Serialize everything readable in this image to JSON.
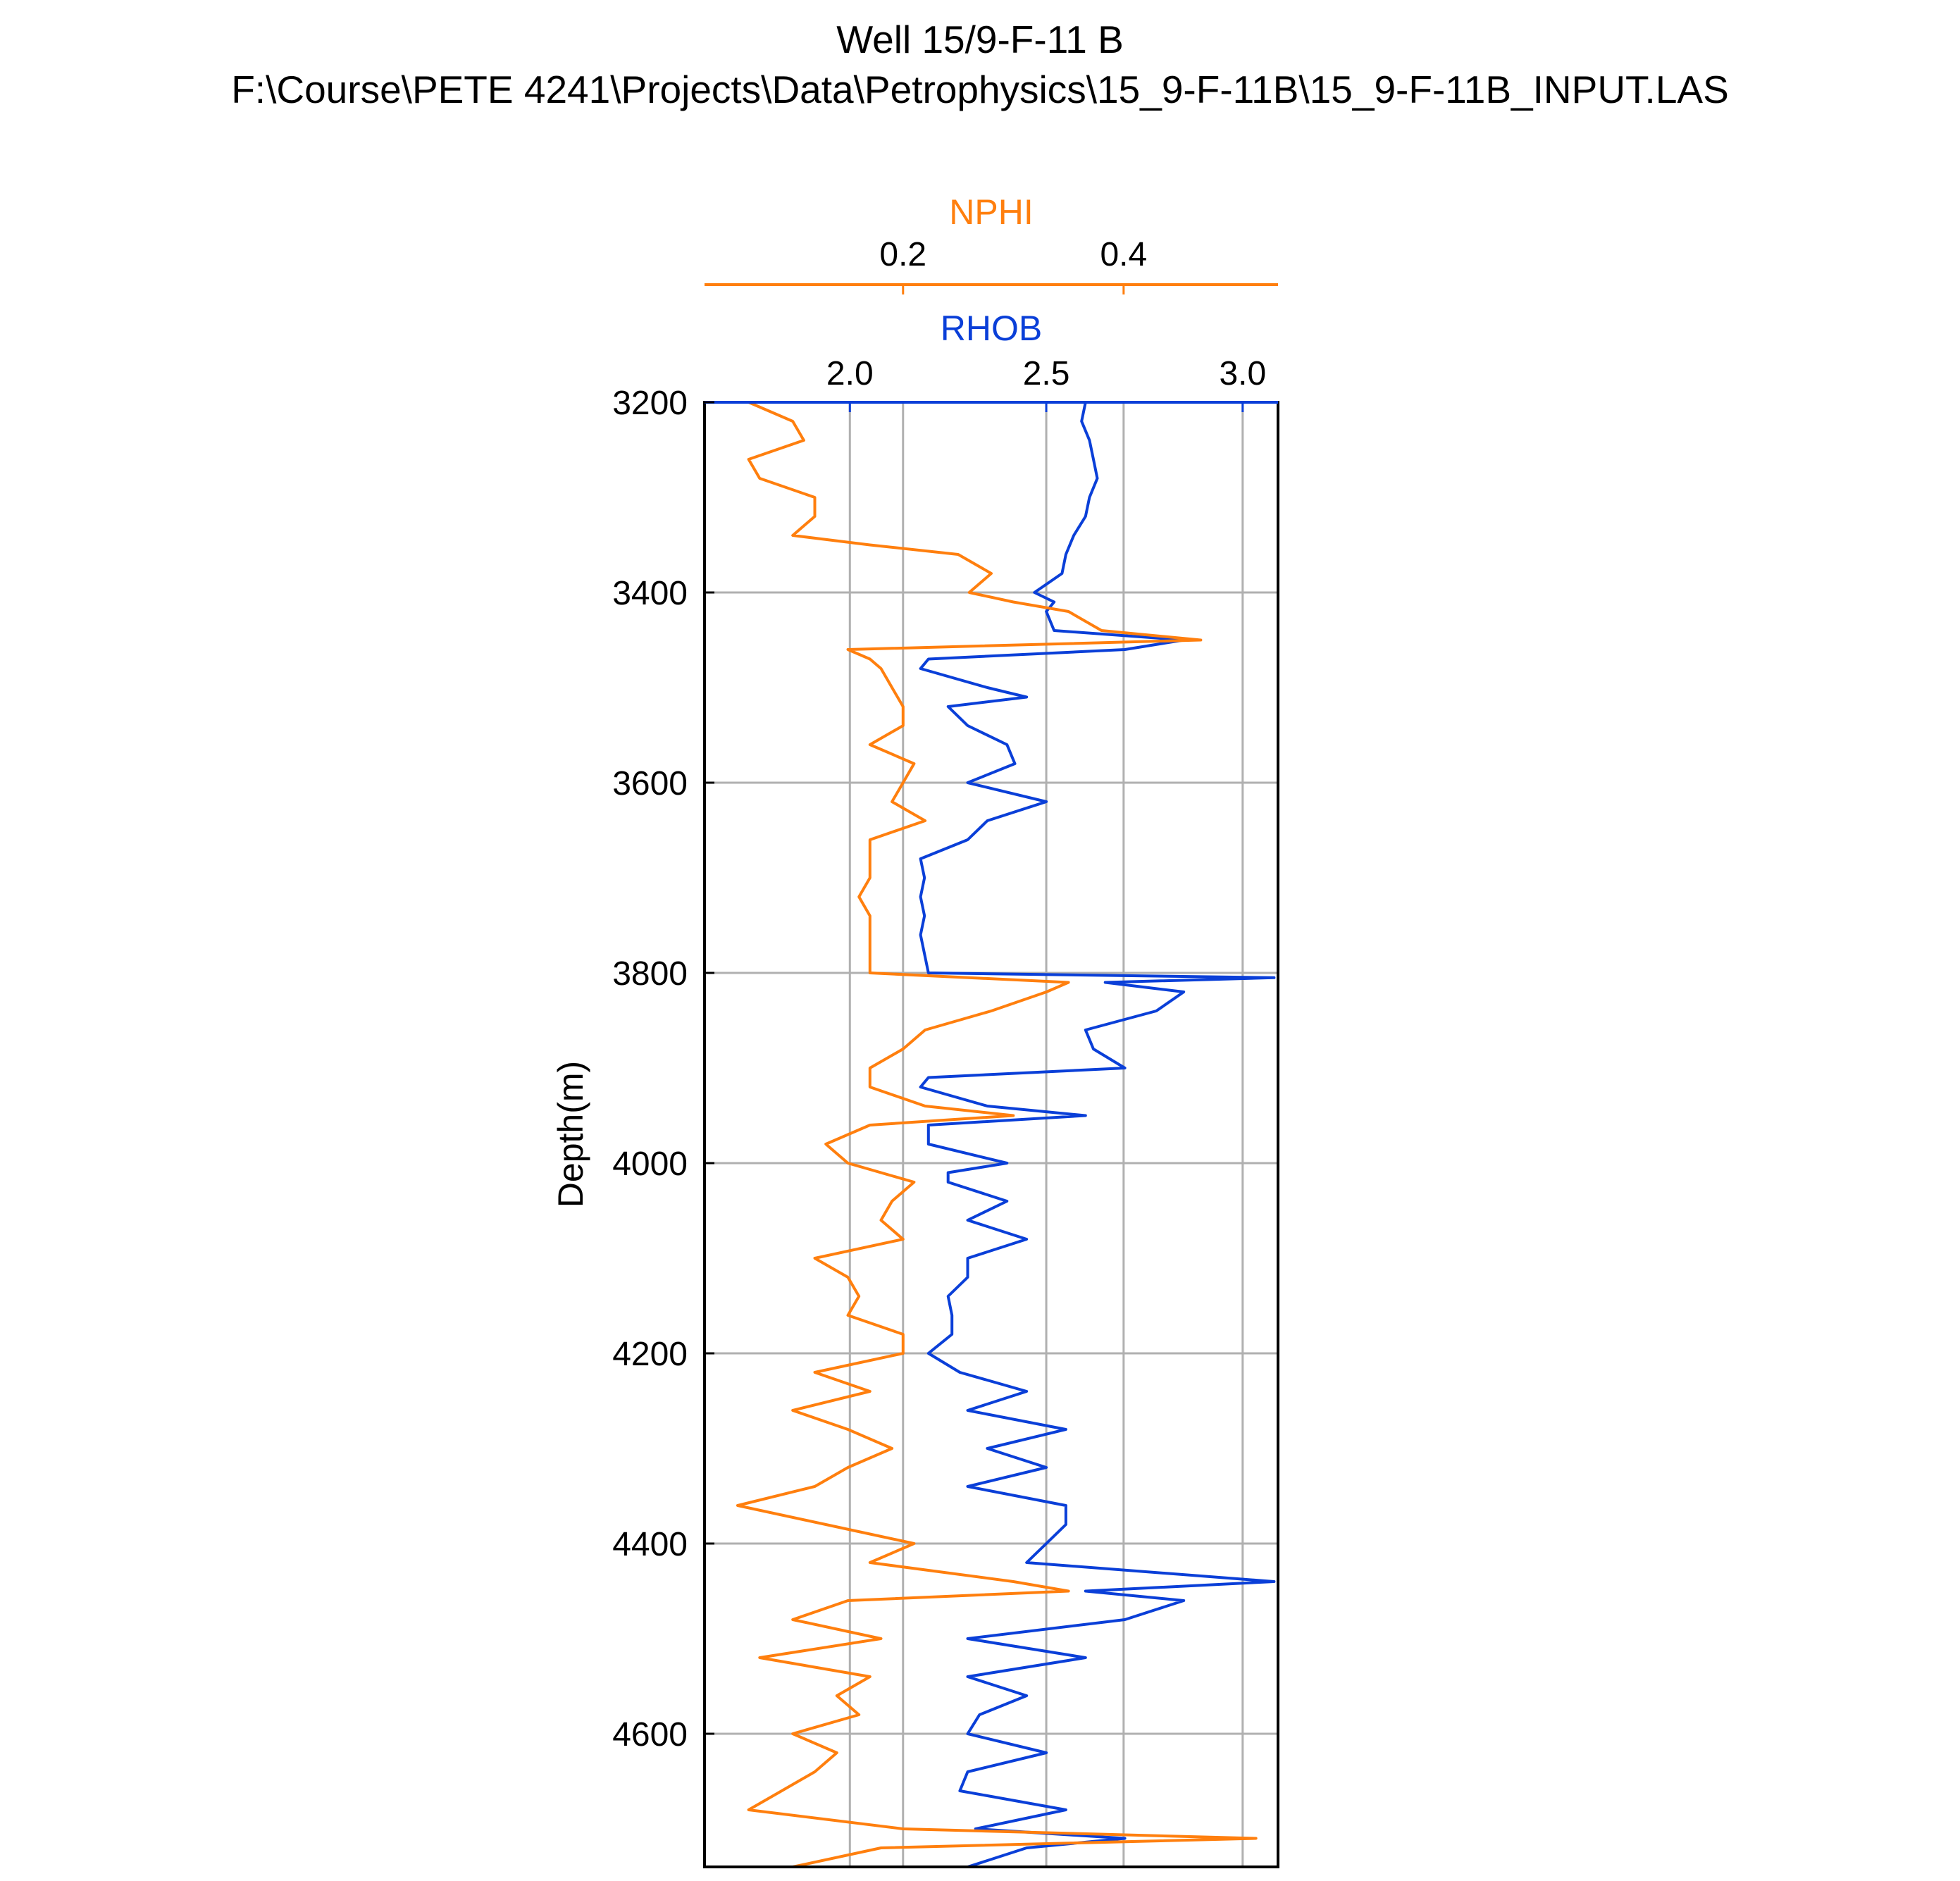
{
  "chart_data": {
    "type": "line",
    "title": "Well 15/9-F-11 B",
    "subtitle": "F:\\Course\\PETE 4241\\Projects\\Data\\Petrophysics\\15_9-F-11B\\15_9-F-11B_INPUT.LAS",
    "ylabel": "Depth(m)",
    "ylim": [
      3200,
      4740
    ],
    "y_ticks": [
      3200,
      3400,
      3600,
      3800,
      4000,
      4200,
      4400,
      4600
    ],
    "grid": true,
    "axes": [
      {
        "name": "NPHI",
        "color": "#ff7f0e",
        "xlim": [
          0.02,
          0.54
        ],
        "ticks": [
          0.2,
          0.4
        ],
        "tick_labels": [
          "0.2",
          "0.4"
        ]
      },
      {
        "name": "RHOB",
        "color": "#0a3fd8",
        "xlim": [
          1.63,
          3.09
        ],
        "ticks": [
          2.0,
          2.5,
          3.0
        ],
        "tick_labels": [
          "2.0",
          "2.5",
          "3.0"
        ]
      }
    ],
    "series": [
      {
        "name": "RHOB",
        "color": "#0a3fd8",
        "depth": [
          3200,
          3220,
          3240,
          3260,
          3280,
          3300,
          3320,
          3340,
          3360,
          3380,
          3400,
          3410,
          3420,
          3440,
          3450,
          3460,
          3470,
          3480,
          3500,
          3510,
          3520,
          3540,
          3560,
          3580,
          3600,
          3620,
          3640,
          3660,
          3680,
          3700,
          3720,
          3740,
          3760,
          3780,
          3800,
          3805,
          3810,
          3820,
          3840,
          3860,
          3880,
          3900,
          3910,
          3920,
          3940,
          3950,
          3960,
          3980,
          4000,
          4010,
          4020,
          4040,
          4060,
          4080,
          4100,
          4120,
          4140,
          4160,
          4180,
          4200,
          4220,
          4240,
          4260,
          4280,
          4300,
          4320,
          4340,
          4360,
          4380,
          4400,
          4420,
          4440,
          4450,
          4460,
          4480,
          4500,
          4520,
          4540,
          4560,
          4580,
          4600,
          4620,
          4640,
          4660,
          4680,
          4700,
          4710,
          4720,
          4740
        ],
        "values": [
          2.6,
          2.59,
          2.61,
          2.62,
          2.63,
          2.61,
          2.6,
          2.57,
          2.55,
          2.54,
          2.47,
          2.52,
          2.5,
          2.52,
          2.85,
          2.7,
          2.2,
          2.18,
          2.35,
          2.45,
          2.25,
          2.3,
          2.4,
          2.42,
          2.3,
          2.5,
          2.35,
          2.3,
          2.18,
          2.19,
          2.18,
          2.19,
          2.18,
          2.19,
          2.2,
          3.08,
          2.65,
          2.85,
          2.78,
          2.6,
          2.62,
          2.7,
          2.2,
          2.18,
          2.35,
          2.6,
          2.2,
          2.2,
          2.4,
          2.25,
          2.25,
          2.4,
          2.3,
          2.45,
          2.3,
          2.3,
          2.25,
          2.26,
          2.26,
          2.2,
          2.28,
          2.45,
          2.3,
          2.55,
          2.35,
          2.5,
          2.3,
          2.55,
          2.55,
          2.5,
          2.45,
          3.08,
          2.6,
          2.85,
          2.7,
          2.3,
          2.6,
          2.3,
          2.45,
          2.33,
          2.3,
          2.5,
          2.3,
          2.28,
          2.55,
          2.32,
          2.7,
          2.45,
          2.3
        ]
      },
      {
        "name": "NPHI",
        "color": "#ff7f0e",
        "depth": [
          3200,
          3220,
          3240,
          3260,
          3280,
          3300,
          3320,
          3340,
          3350,
          3360,
          3380,
          3400,
          3410,
          3420,
          3440,
          3450,
          3460,
          3470,
          3480,
          3500,
          3520,
          3540,
          3560,
          3580,
          3600,
          3620,
          3640,
          3660,
          3680,
          3700,
          3720,
          3740,
          3760,
          3780,
          3800,
          3810,
          3820,
          3840,
          3860,
          3880,
          3900,
          3920,
          3940,
          3950,
          3960,
          3980,
          4000,
          4020,
          4040,
          4060,
          4080,
          4100,
          4120,
          4140,
          4160,
          4180,
          4190,
          4200,
          4220,
          4240,
          4260,
          4280,
          4300,
          4320,
          4340,
          4360,
          4380,
          4400,
          4420,
          4440,
          4450,
          4460,
          4480,
          4500,
          4520,
          4540,
          4560,
          4580,
          4600,
          4620,
          4640,
          4660,
          4680,
          4700,
          4710,
          4720,
          4740
        ],
        "values": [
          0.06,
          0.1,
          0.11,
          0.06,
          0.07,
          0.12,
          0.12,
          0.1,
          0.17,
          0.25,
          0.28,
          0.26,
          0.3,
          0.35,
          0.38,
          0.47,
          0.15,
          0.17,
          0.18,
          0.19,
          0.2,
          0.2,
          0.17,
          0.21,
          0.2,
          0.19,
          0.22,
          0.17,
          0.17,
          0.17,
          0.16,
          0.17,
          0.17,
          0.17,
          0.17,
          0.35,
          0.33,
          0.28,
          0.22,
          0.2,
          0.17,
          0.17,
          0.22,
          0.3,
          0.17,
          0.13,
          0.15,
          0.21,
          0.19,
          0.18,
          0.2,
          0.12,
          0.15,
          0.16,
          0.15,
          0.2,
          0.2,
          0.2,
          0.12,
          0.17,
          0.1,
          0.15,
          0.19,
          0.15,
          0.12,
          0.05,
          0.13,
          0.21,
          0.17,
          0.3,
          0.35,
          0.15,
          0.1,
          0.18,
          0.07,
          0.17,
          0.14,
          0.16,
          0.1,
          0.14,
          0.12,
          0.09,
          0.06,
          0.2,
          0.52,
          0.18,
          0.1
        ]
      }
    ]
  }
}
